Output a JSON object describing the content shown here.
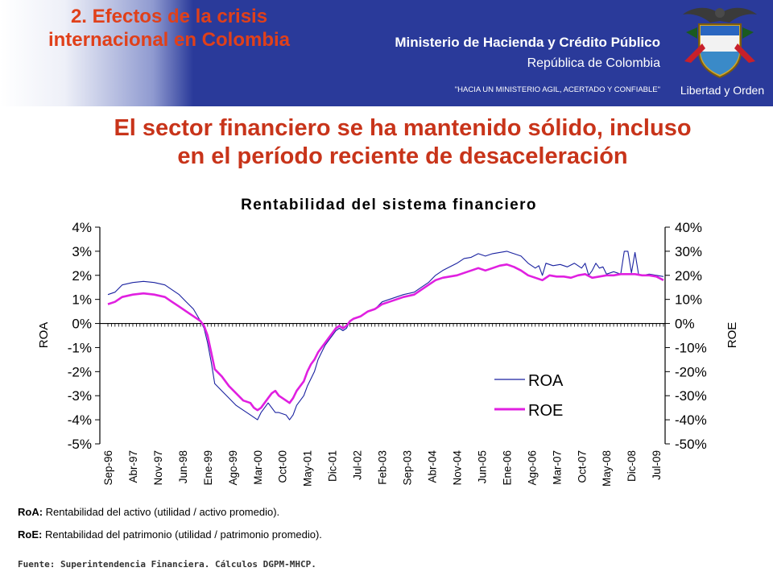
{
  "header": {
    "section_title_line1": "2. Efectos de la crisis",
    "section_title_line2": "internacional en Colombia",
    "ministry": "Ministerio de Hacienda y Crédito Público",
    "republic": "República de Colombia",
    "motto": "\"HACIA UN MINISTERIO AGIL, ACERTADO Y CONFIABLE\"",
    "libertad": "Libertad y Orden",
    "colors": {
      "header_bg": "#2a3a9a",
      "section_title": "#e0401a"
    }
  },
  "main_title_line1": "El sector financiero se ha mantenido sólido, incluso",
  "main_title_line2": "en el período reciente de desaceleración",
  "notes": [
    {
      "term": "RoA:",
      "text": " Rentabilidad del activo (utilidad / activo promedio)."
    },
    {
      "term": "RoE:",
      "text": " Rentabilidad del patrimonio (utilidad / patrimonio promedio)."
    }
  ],
  "source": "Fuente: Superintendencia Financiera. Cálculos DGPM-MHCP.",
  "chart_data": {
    "type": "line",
    "title": "Rentabilidad del sistema financiero",
    "ylabel": "ROA",
    "y2label": "ROE",
    "ylim": [
      -5,
      4
    ],
    "y2lim": [
      -50,
      40
    ],
    "yticks": [
      "4%",
      "3%",
      "2%",
      "1%",
      "0%",
      "-1%",
      "-2%",
      "-3%",
      "-4%",
      "-5%"
    ],
    "y2ticks": [
      "40%",
      "30%",
      "20%",
      "10%",
      "0%",
      "-10%",
      "-20%",
      "-30%",
      "-40%",
      "-50%"
    ],
    "xticks": [
      "Sep-96",
      "Abr-97",
      "Nov-97",
      "Jun-98",
      "Ene-99",
      "Ago-99",
      "Mar-00",
      "Oct-00",
      "May-01",
      "Dic-01",
      "Jul-02",
      "Feb-03",
      "Sep-03",
      "Abr-04",
      "Nov-04",
      "Jun-05",
      "Ene-06",
      "Ago-06",
      "Mar-07",
      "Oct-07",
      "May-08",
      "Dic-08",
      "Jul-09"
    ],
    "legend_position": "center-right",
    "grid": false,
    "series": [
      {
        "name": "ROA",
        "axis": "left",
        "color": "#1a22a0",
        "points": [
          [
            0,
            1.2
          ],
          [
            2,
            1.3
          ],
          [
            4,
            1.6
          ],
          [
            7,
            1.7
          ],
          [
            10,
            1.75
          ],
          [
            13,
            1.7
          ],
          [
            16,
            1.6
          ],
          [
            18,
            1.4
          ],
          [
            20,
            1.2
          ],
          [
            22,
            0.9
          ],
          [
            24,
            0.6
          ],
          [
            25,
            0.35
          ],
          [
            26,
            0.1
          ],
          [
            27,
            -0.2
          ],
          [
            28,
            -0.8
          ],
          [
            29,
            -1.6
          ],
          [
            30,
            -2.5
          ],
          [
            32,
            -2.8
          ],
          [
            34,
            -3.1
          ],
          [
            36,
            -3.4
          ],
          [
            38,
            -3.6
          ],
          [
            40,
            -3.8
          ],
          [
            41,
            -3.9
          ],
          [
            42,
            -4.0
          ],
          [
            43,
            -3.7
          ],
          [
            44,
            -3.5
          ],
          [
            45,
            -3.3
          ],
          [
            46,
            -3.5
          ],
          [
            47,
            -3.7
          ],
          [
            48,
            -3.7
          ],
          [
            50,
            -3.8
          ],
          [
            51,
            -4.0
          ],
          [
            52,
            -3.8
          ],
          [
            53,
            -3.4
          ],
          [
            55,
            -3.0
          ],
          [
            56,
            -2.6
          ],
          [
            57,
            -2.3
          ],
          [
            58,
            -2.0
          ],
          [
            59,
            -1.5
          ],
          [
            60,
            -1.2
          ],
          [
            61,
            -0.9
          ],
          [
            62,
            -0.7
          ],
          [
            63,
            -0.5
          ],
          [
            64,
            -0.3
          ],
          [
            65,
            -0.2
          ],
          [
            66,
            -0.3
          ],
          [
            67,
            -0.2
          ],
          [
            68,
            0.1
          ],
          [
            69,
            0.2
          ],
          [
            71,
            0.3
          ],
          [
            73,
            0.5
          ],
          [
            75,
            0.6
          ],
          [
            77,
            0.9
          ],
          [
            79,
            1.0
          ],
          [
            81,
            1.1
          ],
          [
            83,
            1.2
          ],
          [
            86,
            1.3
          ],
          [
            88,
            1.5
          ],
          [
            90,
            1.7
          ],
          [
            92,
            2.0
          ],
          [
            94,
            2.2
          ],
          [
            96,
            2.35
          ],
          [
            98,
            2.5
          ],
          [
            100,
            2.7
          ],
          [
            102,
            2.75
          ],
          [
            104,
            2.9
          ],
          [
            106,
            2.8
          ],
          [
            108,
            2.9
          ],
          [
            110,
            2.95
          ],
          [
            112,
            3.0
          ],
          [
            114,
            2.9
          ],
          [
            116,
            2.8
          ],
          [
            118,
            2.5
          ],
          [
            120,
            2.3
          ],
          [
            121,
            2.4
          ],
          [
            122,
            2.0
          ],
          [
            123,
            2.5
          ],
          [
            125,
            2.4
          ],
          [
            127,
            2.45
          ],
          [
            129,
            2.35
          ],
          [
            131,
            2.5
          ],
          [
            133,
            2.3
          ],
          [
            134,
            2.5
          ],
          [
            135,
            2.0
          ],
          [
            136,
            2.2
          ],
          [
            137,
            2.5
          ],
          [
            138,
            2.3
          ],
          [
            139,
            2.35
          ],
          [
            140,
            2.05
          ],
          [
            141,
            2.1
          ],
          [
            142,
            2.15
          ],
          [
            143,
            2.1
          ],
          [
            144,
            2.05
          ],
          [
            145,
            3.0
          ],
          [
            146,
            3.0
          ],
          [
            147,
            2.1
          ],
          [
            148,
            2.95
          ],
          [
            149,
            2.05
          ],
          [
            150,
            2.0
          ],
          [
            152,
            2.05
          ],
          [
            154,
            2.0
          ],
          [
            156,
            1.95
          ]
        ]
      },
      {
        "name": "ROE",
        "axis": "right",
        "color": "#e020e0",
        "points": [
          [
            0,
            8
          ],
          [
            2,
            9
          ],
          [
            4,
            11
          ],
          [
            7,
            12
          ],
          [
            10,
            12.5
          ],
          [
            13,
            12
          ],
          [
            16,
            11
          ],
          [
            18,
            9
          ],
          [
            20,
            7
          ],
          [
            22,
            5
          ],
          [
            24,
            3
          ],
          [
            26,
            1
          ],
          [
            27,
            -1
          ],
          [
            28,
            -5
          ],
          [
            29,
            -12
          ],
          [
            30,
            -19
          ],
          [
            32,
            -22
          ],
          [
            34,
            -26
          ],
          [
            36,
            -29
          ],
          [
            38,
            -32
          ],
          [
            40,
            -33
          ],
          [
            41,
            -35
          ],
          [
            42,
            -36
          ],
          [
            43,
            -35
          ],
          [
            44,
            -33
          ],
          [
            45,
            -31
          ],
          [
            46,
            -29
          ],
          [
            47,
            -28
          ],
          [
            48,
            -30
          ],
          [
            50,
            -32
          ],
          [
            51,
            -33
          ],
          [
            52,
            -31
          ],
          [
            53,
            -28
          ],
          [
            55,
            -24
          ],
          [
            56,
            -20
          ],
          [
            57,
            -17
          ],
          [
            58,
            -15
          ],
          [
            59,
            -12
          ],
          [
            60,
            -10
          ],
          [
            61,
            -8
          ],
          [
            62,
            -6
          ],
          [
            63,
            -4
          ],
          [
            64,
            -2
          ],
          [
            65,
            -1
          ],
          [
            66,
            -2
          ],
          [
            67,
            -1
          ],
          [
            68,
            1
          ],
          [
            69,
            2
          ],
          [
            71,
            3
          ],
          [
            73,
            5
          ],
          [
            75,
            6
          ],
          [
            77,
            8
          ],
          [
            79,
            9
          ],
          [
            81,
            10
          ],
          [
            83,
            11
          ],
          [
            86,
            12
          ],
          [
            88,
            14
          ],
          [
            90,
            16
          ],
          [
            92,
            18
          ],
          [
            94,
            19
          ],
          [
            96,
            19.5
          ],
          [
            98,
            20
          ],
          [
            100,
            21
          ],
          [
            102,
            22
          ],
          [
            104,
            23
          ],
          [
            106,
            22
          ],
          [
            108,
            23
          ],
          [
            110,
            24
          ],
          [
            112,
            24.5
          ],
          [
            114,
            23.5
          ],
          [
            116,
            22
          ],
          [
            118,
            20
          ],
          [
            120,
            19
          ],
          [
            122,
            18
          ],
          [
            124,
            20
          ],
          [
            126,
            19.5
          ],
          [
            128,
            19.5
          ],
          [
            130,
            19
          ],
          [
            132,
            20
          ],
          [
            134,
            20.5
          ],
          [
            136,
            19
          ],
          [
            138,
            19.5
          ],
          [
            140,
            20
          ],
          [
            142,
            20
          ],
          [
            144,
            20.5
          ],
          [
            146,
            20.5
          ],
          [
            148,
            20.5
          ],
          [
            150,
            20
          ],
          [
            152,
            20
          ],
          [
            154,
            19.5
          ],
          [
            156,
            18
          ]
        ]
      }
    ]
  }
}
